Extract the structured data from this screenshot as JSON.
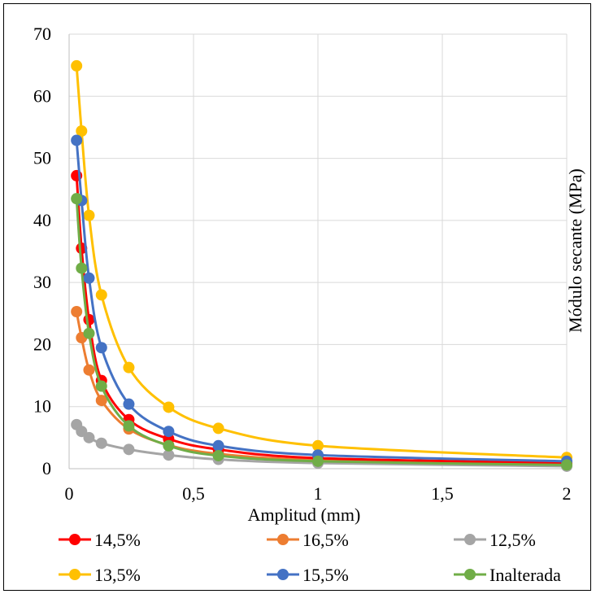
{
  "chart_data": {
    "type": "scatter",
    "xlabel": "Amplitud (mm)",
    "ylabel": "Módulo secante (MPa)",
    "xlim": [
      0,
      2
    ],
    "ylim": [
      0,
      70
    ],
    "xticks": [
      0,
      0.5,
      1,
      1.5,
      2
    ],
    "xtick_labels": [
      "0",
      "0,5",
      "1",
      "1,5",
      "2"
    ],
    "yticks": [
      0,
      10,
      20,
      30,
      40,
      50,
      60,
      70
    ],
    "ytick_labels": [
      "0",
      "10",
      "20",
      "30",
      "40",
      "50",
      "60",
      "70"
    ],
    "grid": true,
    "legend_position": "bottom",
    "series": [
      {
        "name": "14,5%",
        "color": "#ff0000",
        "x": [
          0.03,
          0.05,
          0.08,
          0.13,
          0.24,
          0.4,
          0.6,
          1.0,
          2.0
        ],
        "y": [
          47.2,
          35.5,
          24.0,
          14.2,
          7.9,
          4.8,
          3.1,
          1.7,
          0.9
        ]
      },
      {
        "name": "16,5%",
        "color": "#ed7d31",
        "x": [
          0.03,
          0.05,
          0.08,
          0.13,
          0.24,
          0.4,
          0.6,
          1.0,
          2.0
        ],
        "y": [
          25.3,
          21.1,
          15.9,
          11.0,
          6.4,
          3.8,
          2.4,
          1.4,
          0.8
        ]
      },
      {
        "name": "12,5%",
        "color": "#a5a5a5",
        "x": [
          0.03,
          0.05,
          0.08,
          0.13,
          0.24,
          0.4,
          0.6,
          1.0,
          2.0
        ],
        "y": [
          7.1,
          6.0,
          5.0,
          4.1,
          3.1,
          2.2,
          1.5,
          0.9,
          0.4
        ]
      },
      {
        "name": "13,5%",
        "color": "#ffc000",
        "x": [
          0.03,
          0.05,
          0.08,
          0.13,
          0.24,
          0.4,
          0.6,
          1.0,
          2.0
        ],
        "y": [
          64.9,
          54.4,
          40.8,
          28.0,
          16.3,
          9.9,
          6.5,
          3.7,
          1.8
        ]
      },
      {
        "name": "15,5%",
        "color": "#4472c4",
        "x": [
          0.03,
          0.05,
          0.08,
          0.13,
          0.24,
          0.4,
          0.6,
          1.0,
          2.0
        ],
        "y": [
          52.9,
          43.2,
          30.7,
          19.5,
          10.4,
          6.0,
          3.7,
          2.2,
          1.2
        ]
      },
      {
        "name": "Inalterada",
        "color": "#70ad47",
        "x": [
          0.03,
          0.05,
          0.08,
          0.13,
          0.24,
          0.4,
          0.6,
          1.0,
          2.0
        ],
        "y": [
          43.5,
          32.3,
          21.8,
          13.3,
          6.9,
          3.7,
          2.1,
          1.2,
          0.6
        ]
      }
    ]
  }
}
